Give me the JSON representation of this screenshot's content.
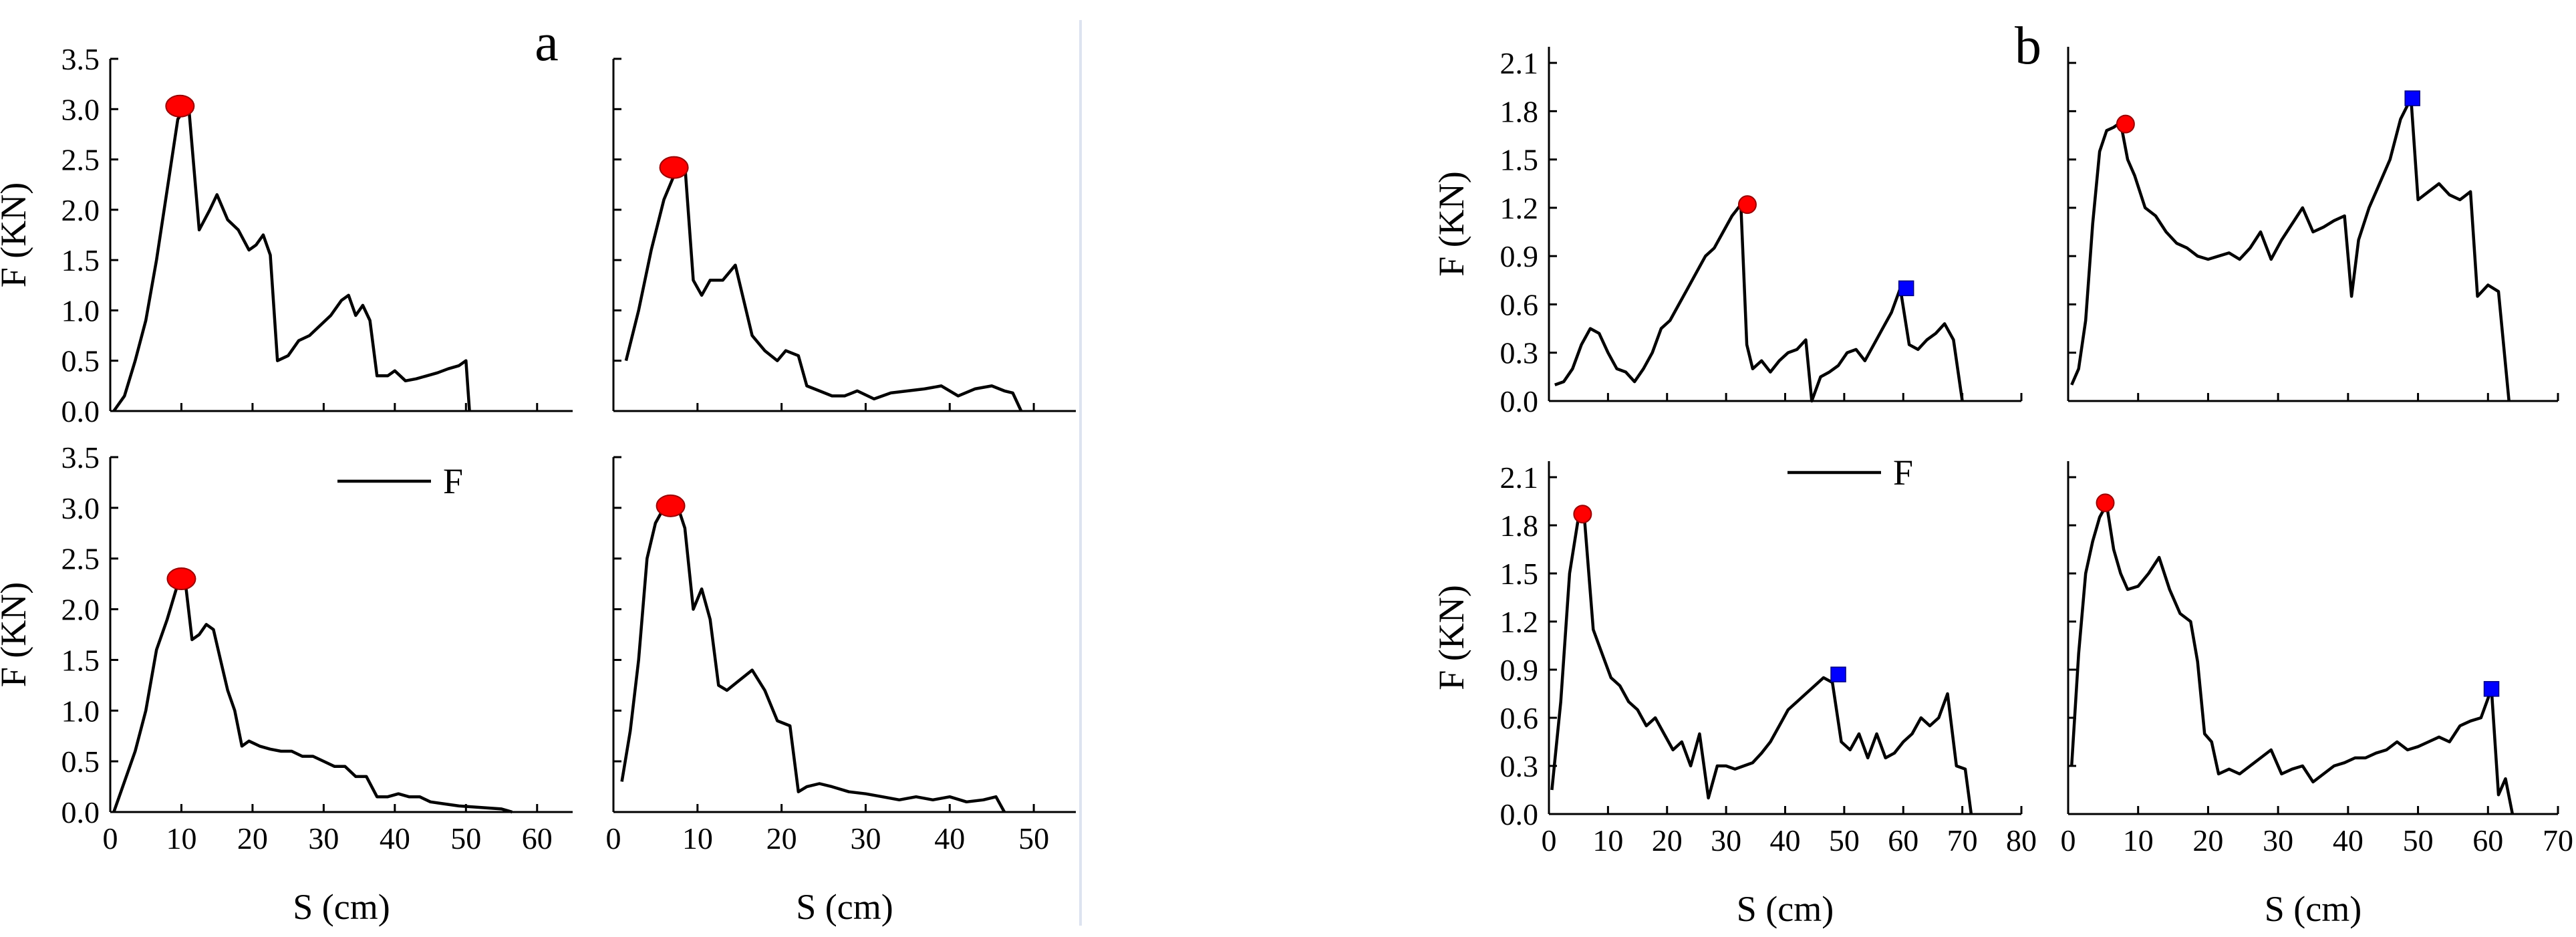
{
  "figure": {
    "divider_color": "#dde3f0"
  },
  "chart_data": [
    {
      "type": "line",
      "panel": "a",
      "position": "top-left",
      "panel_label": "a",
      "xlabel": "",
      "ylabel": "F (KN)",
      "xlim": [
        0,
        65
      ],
      "ylim": [
        0,
        3.5
      ],
      "xticks": [
        0,
        10,
        20,
        30,
        40,
        50,
        60
      ],
      "yticks": [
        0.0,
        0.5,
        1.0,
        1.5,
        2.0,
        2.5,
        3.0,
        3.5
      ],
      "show_x_tick_labels": false,
      "show_y_tick_labels": true,
      "series": [
        {
          "name": "F",
          "color": "#000000",
          "x": [
            0.5,
            2,
            3.5,
            5,
            6.5,
            8,
            9.5,
            11,
            12.5,
            14,
            15,
            16.5,
            18,
            19.5,
            20.5,
            21.5,
            22.5,
            23.5,
            25,
            26.5,
            28,
            29.5,
            31,
            32.5,
            33.5,
            34.5,
            35.5,
            36.5,
            37.5,
            39,
            40,
            41.5,
            43,
            44.5,
            46,
            47.5,
            49,
            50,
            50.5
          ],
          "y": [
            0.0,
            0.15,
            0.5,
            0.9,
            1.5,
            2.2,
            2.9,
            3.05,
            1.8,
            2.0,
            2.15,
            1.9,
            1.8,
            1.6,
            1.65,
            1.75,
            1.55,
            0.5,
            0.55,
            0.7,
            0.75,
            0.85,
            0.95,
            1.1,
            1.15,
            0.95,
            1.05,
            0.9,
            0.35,
            0.35,
            0.4,
            0.3,
            0.32,
            0.35,
            0.38,
            0.42,
            0.45,
            0.5,
            0.0
          ]
        }
      ],
      "markers": [
        {
          "shape": "circle",
          "color": "#ff0000",
          "x": 9.8,
          "y": 3.03
        }
      ]
    },
    {
      "type": "line",
      "panel": "a",
      "position": "top-right",
      "panel_label": "",
      "xlabel": "",
      "ylabel": "",
      "xlim": [
        0,
        55
      ],
      "ylim": [
        0,
        3.5
      ],
      "xticks": [
        0,
        10,
        20,
        30,
        40,
        50
      ],
      "yticks": [
        0.0,
        0.5,
        1.0,
        1.5,
        2.0,
        2.5,
        3.0,
        3.5
      ],
      "show_x_tick_labels": false,
      "show_y_tick_labels": false,
      "series": [
        {
          "name": "F",
          "color": "#000000",
          "x": [
            1.5,
            3,
            4.5,
            6,
            7.5,
            8.5,
            9.5,
            10.5,
            11.5,
            13,
            14.5,
            15.5,
            16.5,
            18,
            19.5,
            20.5,
            22,
            23,
            24.5,
            26,
            27.5,
            29,
            31,
            33,
            35,
            37,
            39,
            41,
            43,
            45,
            46.5,
            47.5,
            48.5
          ],
          "y": [
            0.5,
            1.0,
            1.6,
            2.1,
            2.4,
            2.45,
            1.3,
            1.15,
            1.3,
            1.3,
            1.45,
            1.1,
            0.75,
            0.6,
            0.5,
            0.6,
            0.55,
            0.25,
            0.2,
            0.15,
            0.15,
            0.2,
            0.12,
            0.18,
            0.2,
            0.22,
            0.25,
            0.15,
            0.22,
            0.25,
            0.2,
            0.18,
            0.0
          ]
        }
      ],
      "markers": [
        {
          "shape": "circle",
          "color": "#ff0000",
          "x": 7.2,
          "y": 2.42
        }
      ]
    },
    {
      "type": "line",
      "panel": "a",
      "position": "bottom-left",
      "panel_label": "",
      "xlabel": "S (cm)",
      "ylabel": "F (KN)",
      "xlim": [
        0,
        65
      ],
      "ylim": [
        0,
        3.5
      ],
      "xticks": [
        0,
        10,
        20,
        30,
        40,
        50,
        60
      ],
      "yticks": [
        0.0,
        0.5,
        1.0,
        1.5,
        2.0,
        2.5,
        3.0,
        3.5
      ],
      "show_x_tick_labels": true,
      "show_y_tick_labels": true,
      "legend": {
        "label": "F",
        "placement": "top-center"
      },
      "series": [
        {
          "name": "F",
          "color": "#000000",
          "x": [
            0.5,
            2,
            3.5,
            5,
            6.5,
            8,
            9.5,
            10.5,
            11.5,
            12.5,
            13.5,
            14.5,
            15.5,
            16.5,
            17.5,
            18.5,
            19.5,
            21,
            22.5,
            24,
            25.5,
            27,
            28.5,
            30,
            31.5,
            33,
            34.5,
            36,
            37.5,
            39,
            40.5,
            42,
            43.5,
            45,
            47,
            49,
            51,
            53,
            55,
            56.5
          ],
          "y": [
            0.0,
            0.3,
            0.6,
            1.0,
            1.6,
            1.9,
            2.25,
            2.3,
            1.7,
            1.75,
            1.85,
            1.8,
            1.5,
            1.2,
            1.0,
            0.65,
            0.7,
            0.65,
            0.62,
            0.6,
            0.6,
            0.55,
            0.55,
            0.5,
            0.45,
            0.45,
            0.35,
            0.35,
            0.15,
            0.15,
            0.18,
            0.15,
            0.15,
            0.1,
            0.08,
            0.06,
            0.05,
            0.04,
            0.03,
            0.0
          ]
        }
      ],
      "markers": [
        {
          "shape": "circle",
          "color": "#ff0000",
          "x": 10,
          "y": 2.3
        }
      ]
    },
    {
      "type": "line",
      "panel": "a",
      "position": "bottom-right",
      "panel_label": "",
      "xlabel": "S (cm)",
      "ylabel": "",
      "xlim": [
        0,
        55
      ],
      "ylim": [
        0,
        3.5
      ],
      "xticks": [
        0,
        10,
        20,
        30,
        40,
        50
      ],
      "yticks": [
        0.0,
        0.5,
        1.0,
        1.5,
        2.0,
        2.5,
        3.0,
        3.5
      ],
      "show_x_tick_labels": true,
      "show_y_tick_labels": false,
      "series": [
        {
          "name": "F",
          "color": "#000000",
          "x": [
            1,
            2,
            3,
            4,
            5,
            6,
            7.5,
            8.5,
            9.5,
            10.5,
            11.5,
            12.5,
            13.5,
            15,
            16.5,
            18,
            19.5,
            21,
            22,
            23,
            24.5,
            26,
            28,
            30,
            32,
            34,
            36,
            38,
            40,
            42,
            44,
            45.5,
            46.5
          ],
          "y": [
            0.3,
            0.8,
            1.5,
            2.5,
            2.85,
            3.0,
            3.05,
            2.8,
            2.0,
            2.2,
            1.9,
            1.25,
            1.2,
            1.3,
            1.4,
            1.2,
            0.9,
            0.85,
            0.2,
            0.25,
            0.28,
            0.25,
            0.2,
            0.18,
            0.15,
            0.12,
            0.15,
            0.12,
            0.15,
            0.1,
            0.12,
            0.15,
            0.0
          ]
        }
      ],
      "markers": [
        {
          "shape": "circle",
          "color": "#ff0000",
          "x": 6.8,
          "y": 3.02
        }
      ]
    },
    {
      "type": "line",
      "panel": "b",
      "position": "top-left",
      "panel_label": "b",
      "xlabel": "",
      "ylabel": "F (KN)",
      "xlim": [
        0,
        80
      ],
      "ylim": [
        0,
        2.2
      ],
      "xticks": [
        0,
        10,
        20,
        30,
        40,
        50,
        60,
        70,
        80
      ],
      "yticks": [
        0.0,
        0.3,
        0.6,
        0.9,
        1.2,
        1.5,
        1.8,
        2.1
      ],
      "show_x_tick_labels": false,
      "show_y_tick_labels": true,
      "series": [
        {
          "name": "F",
          "color": "#000000",
          "x": [
            1,
            2.5,
            4,
            5.5,
            7,
            8.5,
            10,
            11.5,
            13,
            14.5,
            16,
            17.5,
            19,
            20.5,
            22,
            23.5,
            25,
            26.5,
            28,
            29.5,
            31,
            32.5,
            33.5,
            34.5,
            36,
            37.5,
            39,
            40.5,
            42,
            43.5,
            44.5,
            46,
            47.5,
            49,
            50.5,
            52,
            53.5,
            55,
            56.5,
            58,
            59.5,
            61,
            62.5,
            64,
            65.5,
            67,
            68.5,
            70
          ],
          "y": [
            0.1,
            0.12,
            0.2,
            0.35,
            0.45,
            0.42,
            0.3,
            0.2,
            0.18,
            0.12,
            0.2,
            0.3,
            0.45,
            0.5,
            0.6,
            0.7,
            0.8,
            0.9,
            0.95,
            1.05,
            1.15,
            1.22,
            0.35,
            0.2,
            0.25,
            0.18,
            0.25,
            0.3,
            0.32,
            0.38,
            0.0,
            0.15,
            0.18,
            0.22,
            0.3,
            0.32,
            0.25,
            0.35,
            0.45,
            0.55,
            0.7,
            0.35,
            0.32,
            0.38,
            0.42,
            0.48,
            0.38,
            0.0
          ]
        }
      ],
      "markers": [
        {
          "shape": "circle",
          "color": "#ff0000",
          "x": 33.6,
          "y": 1.22
        },
        {
          "shape": "square",
          "color": "#0000ff",
          "x": 60.5,
          "y": 0.7
        }
      ]
    },
    {
      "type": "line",
      "panel": "b",
      "position": "top-right",
      "panel_label": "",
      "xlabel": "",
      "ylabel": "",
      "xlim": [
        0,
        70
      ],
      "ylim": [
        0,
        2.2
      ],
      "xticks": [
        0,
        10,
        20,
        30,
        40,
        50,
        60,
        70
      ],
      "yticks": [
        0.0,
        0.3,
        0.6,
        0.9,
        1.2,
        1.5,
        1.8,
        2.1
      ],
      "show_x_tick_labels": false,
      "show_y_tick_labels": false,
      "series": [
        {
          "name": "F",
          "color": "#000000",
          "x": [
            0.5,
            1.5,
            2.5,
            3.5,
            4.5,
            5.5,
            6.5,
            7.5,
            8.5,
            9.5,
            11,
            12.5,
            14,
            15.5,
            17,
            18.5,
            20,
            21.5,
            23,
            24.5,
            26,
            27.5,
            29,
            30.5,
            32,
            33.5,
            35,
            36.5,
            38,
            39.5,
            40.5,
            41.5,
            43,
            44.5,
            46,
            47.5,
            49,
            50,
            51.5,
            53,
            54.5,
            56,
            57.5,
            58.5,
            60,
            61.5,
            63
          ],
          "y": [
            0.1,
            0.2,
            0.5,
            1.1,
            1.55,
            1.68,
            1.7,
            1.73,
            1.5,
            1.4,
            1.2,
            1.15,
            1.05,
            0.98,
            0.95,
            0.9,
            0.88,
            0.9,
            0.92,
            0.88,
            0.95,
            1.05,
            0.88,
            1.0,
            1.1,
            1.2,
            1.05,
            1.08,
            1.12,
            1.15,
            0.65,
            1.0,
            1.2,
            1.35,
            1.5,
            1.75,
            1.88,
            1.25,
            1.3,
            1.35,
            1.28,
            1.25,
            1.3,
            0.65,
            0.72,
            0.68,
            0.0
          ]
        }
      ],
      "markers": [
        {
          "shape": "circle",
          "color": "#ff0000",
          "x": 8.2,
          "y": 1.72
        },
        {
          "shape": "square",
          "color": "#0000ff",
          "x": 49.2,
          "y": 1.88
        }
      ]
    },
    {
      "type": "line",
      "panel": "b",
      "position": "bottom-left",
      "panel_label": "",
      "xlabel": "S (cm)",
      "ylabel": "F (KN)",
      "xlim": [
        0,
        80
      ],
      "ylim": [
        0,
        2.2
      ],
      "xticks": [
        0,
        10,
        20,
        30,
        40,
        50,
        60,
        70,
        80
      ],
      "yticks": [
        0.0,
        0.3,
        0.6,
        0.9,
        1.2,
        1.5,
        1.8,
        2.1
      ],
      "show_x_tick_labels": true,
      "show_y_tick_labels": true,
      "legend": {
        "label": "F",
        "placement": "top-center"
      },
      "series": [
        {
          "name": "F",
          "color": "#000000",
          "x": [
            0.5,
            2,
            3.5,
            5,
            6,
            7.5,
            9,
            10.5,
            12,
            13.5,
            15,
            16.5,
            18,
            19.5,
            21,
            22.5,
            24,
            25.5,
            27,
            28.5,
            30,
            31.5,
            33,
            34.5,
            36,
            37.5,
            39,
            40.5,
            42,
            43.5,
            45,
            46.5,
            48,
            49.5,
            51,
            52.5,
            54,
            55.5,
            57,
            58.5,
            60,
            61.5,
            63,
            64.5,
            66,
            67.5,
            69,
            70.5,
            71.5
          ],
          "y": [
            0.15,
            0.7,
            1.5,
            1.85,
            1.85,
            1.15,
            1.0,
            0.85,
            0.8,
            0.7,
            0.65,
            0.55,
            0.6,
            0.5,
            0.4,
            0.45,
            0.3,
            0.5,
            0.1,
            0.3,
            0.3,
            0.28,
            0.3,
            0.32,
            0.38,
            0.45,
            0.55,
            0.65,
            0.7,
            0.75,
            0.8,
            0.85,
            0.82,
            0.45,
            0.4,
            0.5,
            0.35,
            0.5,
            0.35,
            0.38,
            0.45,
            0.5,
            0.6,
            0.55,
            0.6,
            0.75,
            0.3,
            0.28,
            0.0
          ]
        }
      ],
      "markers": [
        {
          "shape": "circle",
          "color": "#ff0000",
          "x": 5.7,
          "y": 1.87
        },
        {
          "shape": "square",
          "color": "#0000ff",
          "x": 49,
          "y": 0.87
        }
      ]
    },
    {
      "type": "line",
      "panel": "b",
      "position": "bottom-right",
      "panel_label": "",
      "xlabel": "S (cm)",
      "ylabel": "",
      "xlim": [
        0,
        70
      ],
      "ylim": [
        0,
        2.2
      ],
      "xticks": [
        0,
        10,
        20,
        30,
        40,
        50,
        60,
        70
      ],
      "yticks": [
        0.0,
        0.3,
        0.6,
        0.9,
        1.2,
        1.5,
        1.8,
        2.1
      ],
      "show_x_tick_labels": true,
      "show_y_tick_labels": false,
      "series": [
        {
          "name": "F",
          "color": "#000000",
          "x": [
            0.5,
            1.5,
            2.5,
            3.5,
            4.5,
            5.5,
            6.5,
            7.5,
            8.5,
            10,
            11.5,
            13,
            14.5,
            16,
            17.5,
            18.5,
            19.5,
            20.5,
            21.5,
            23,
            24.5,
            26,
            27.5,
            29,
            30.5,
            32,
            33.5,
            35,
            36.5,
            38,
            39.5,
            41,
            42.5,
            44,
            45.5,
            47,
            48.5,
            50,
            51.5,
            53,
            54.5,
            56,
            57.5,
            59,
            60.5,
            61.5,
            62.5,
            63.5
          ],
          "y": [
            0.3,
            1.0,
            1.5,
            1.7,
            1.85,
            1.93,
            1.65,
            1.5,
            1.4,
            1.42,
            1.5,
            1.6,
            1.4,
            1.25,
            1.2,
            0.95,
            0.5,
            0.45,
            0.25,
            0.28,
            0.25,
            0.3,
            0.35,
            0.4,
            0.25,
            0.28,
            0.3,
            0.2,
            0.25,
            0.3,
            0.32,
            0.35,
            0.35,
            0.38,
            0.4,
            0.45,
            0.4,
            0.42,
            0.45,
            0.48,
            0.45,
            0.55,
            0.58,
            0.6,
            0.78,
            0.12,
            0.22,
            0.0
          ]
        }
      ],
      "markers": [
        {
          "shape": "circle",
          "color": "#ff0000",
          "x": 5.3,
          "y": 1.94
        },
        {
          "shape": "square",
          "color": "#0000ff",
          "x": 60.5,
          "y": 0.78
        }
      ]
    }
  ]
}
